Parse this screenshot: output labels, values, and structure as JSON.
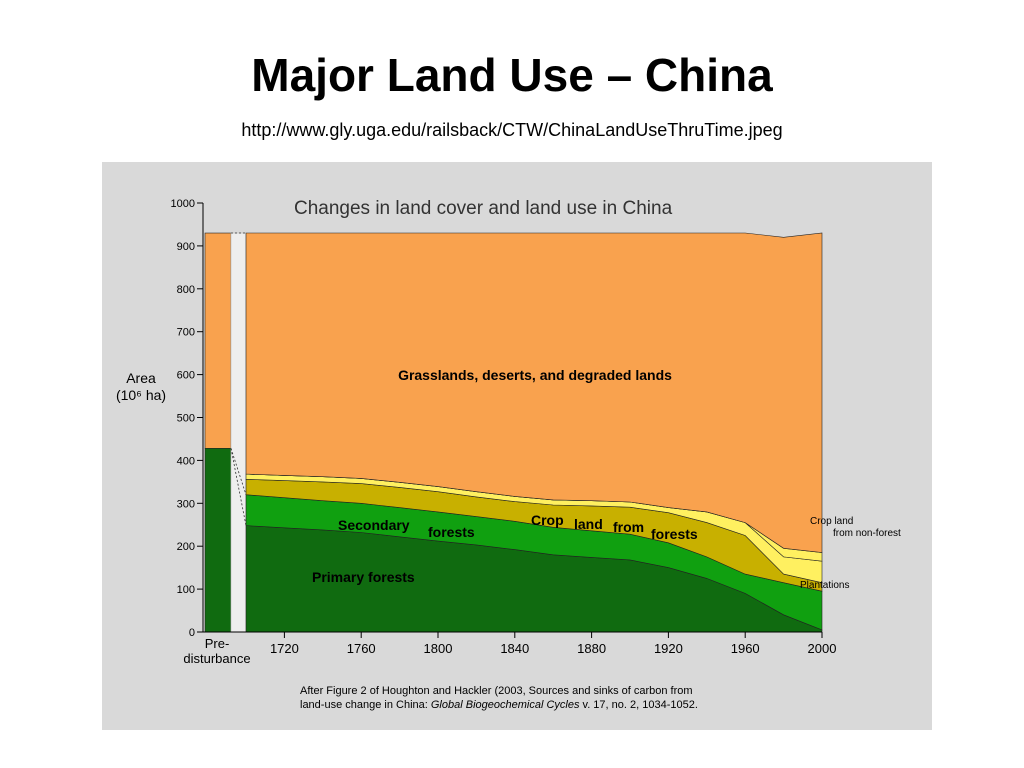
{
  "slide": {
    "title": "Major Land Use – China",
    "subtitle": "http://www.gly.uga.edu/railsback/CTW/ChinaLandUseThruTime.jpeg"
  },
  "chart_data": {
    "type": "area",
    "title": "Changes in land cover and land use in China",
    "ylabel": "Area",
    "ylabel_unit": "(10⁶ ha)",
    "ylim": [
      0,
      1000
    ],
    "yticks": [
      0,
      100,
      200,
      300,
      400,
      500,
      600,
      700,
      800,
      900,
      1000
    ],
    "xlim": [
      1700,
      2000
    ],
    "xticks": [
      1720,
      1760,
      1800,
      1840,
      1880,
      1920,
      1960,
      2000
    ],
    "predisturbance_label": [
      "Pre-",
      "disturbance"
    ],
    "x": [
      1700,
      1720,
      1740,
      1760,
      1780,
      1800,
      1820,
      1840,
      1860,
      1880,
      1900,
      1920,
      1940,
      1960,
      1980,
      2000
    ],
    "series": [
      {
        "name": "Primary forests",
        "color": "#106b10",
        "values": [
          248,
          243,
          238,
          232,
          222,
          212,
          203,
          192,
          180,
          174,
          168,
          150,
          125,
          90,
          40,
          5
        ]
      },
      {
        "name": "Secondary forests",
        "color": "#10a010",
        "values": [
          72,
          70,
          68,
          68,
          68,
          68,
          66,
          66,
          64,
          62,
          60,
          58,
          50,
          45,
          75,
          90
        ]
      },
      {
        "name": "Crop land from forests",
        "color": "#c8b000",
        "values": [
          36,
          40,
          44,
          46,
          47,
          47,
          46,
          46,
          52,
          58,
          63,
          70,
          80,
          90,
          20,
          20
        ]
      },
      {
        "name": "Crop land from non-forest",
        "color": "#fff060",
        "values": [
          12,
          12,
          12,
          12,
          12,
          12,
          12,
          12,
          12,
          12,
          12,
          12,
          25,
          30,
          40,
          50
        ]
      },
      {
        "name": "Plantations",
        "color": "#fff060",
        "values": [
          0,
          0,
          0,
          0,
          0,
          0,
          0,
          0,
          0,
          0,
          0,
          0,
          0,
          0,
          20,
          20
        ]
      },
      {
        "name": "Grasslands, deserts, and degraded lands",
        "color": "#f9a24e",
        "values": [
          562,
          565,
          568,
          572,
          581,
          591,
          603,
          614,
          622,
          624,
          627,
          640,
          650,
          675,
          725,
          745
        ]
      }
    ],
    "predisturbance": {
      "forest": 428,
      "grassland": 502
    },
    "labels": {
      "grasslands": "Grasslands, deserts, and degraded lands",
      "secondary": [
        "Secondary",
        "forests"
      ],
      "cropland": [
        "Crop",
        "land",
        "from",
        "forests"
      ],
      "primary": "Primary forests",
      "crop_nonforest": [
        "Crop land",
        "from non-forest"
      ],
      "plantations": "Plantations"
    },
    "caption": {
      "line1": "After Figure 2 of Houghton and Hackler (2003, Sources and sinks of carbon from",
      "line2_pre": "land-use change in China: ",
      "line2_journal": "Global Biogeochemical Cycles",
      "line2_post": " v. 17, no. 2, 1034-1052."
    }
  }
}
